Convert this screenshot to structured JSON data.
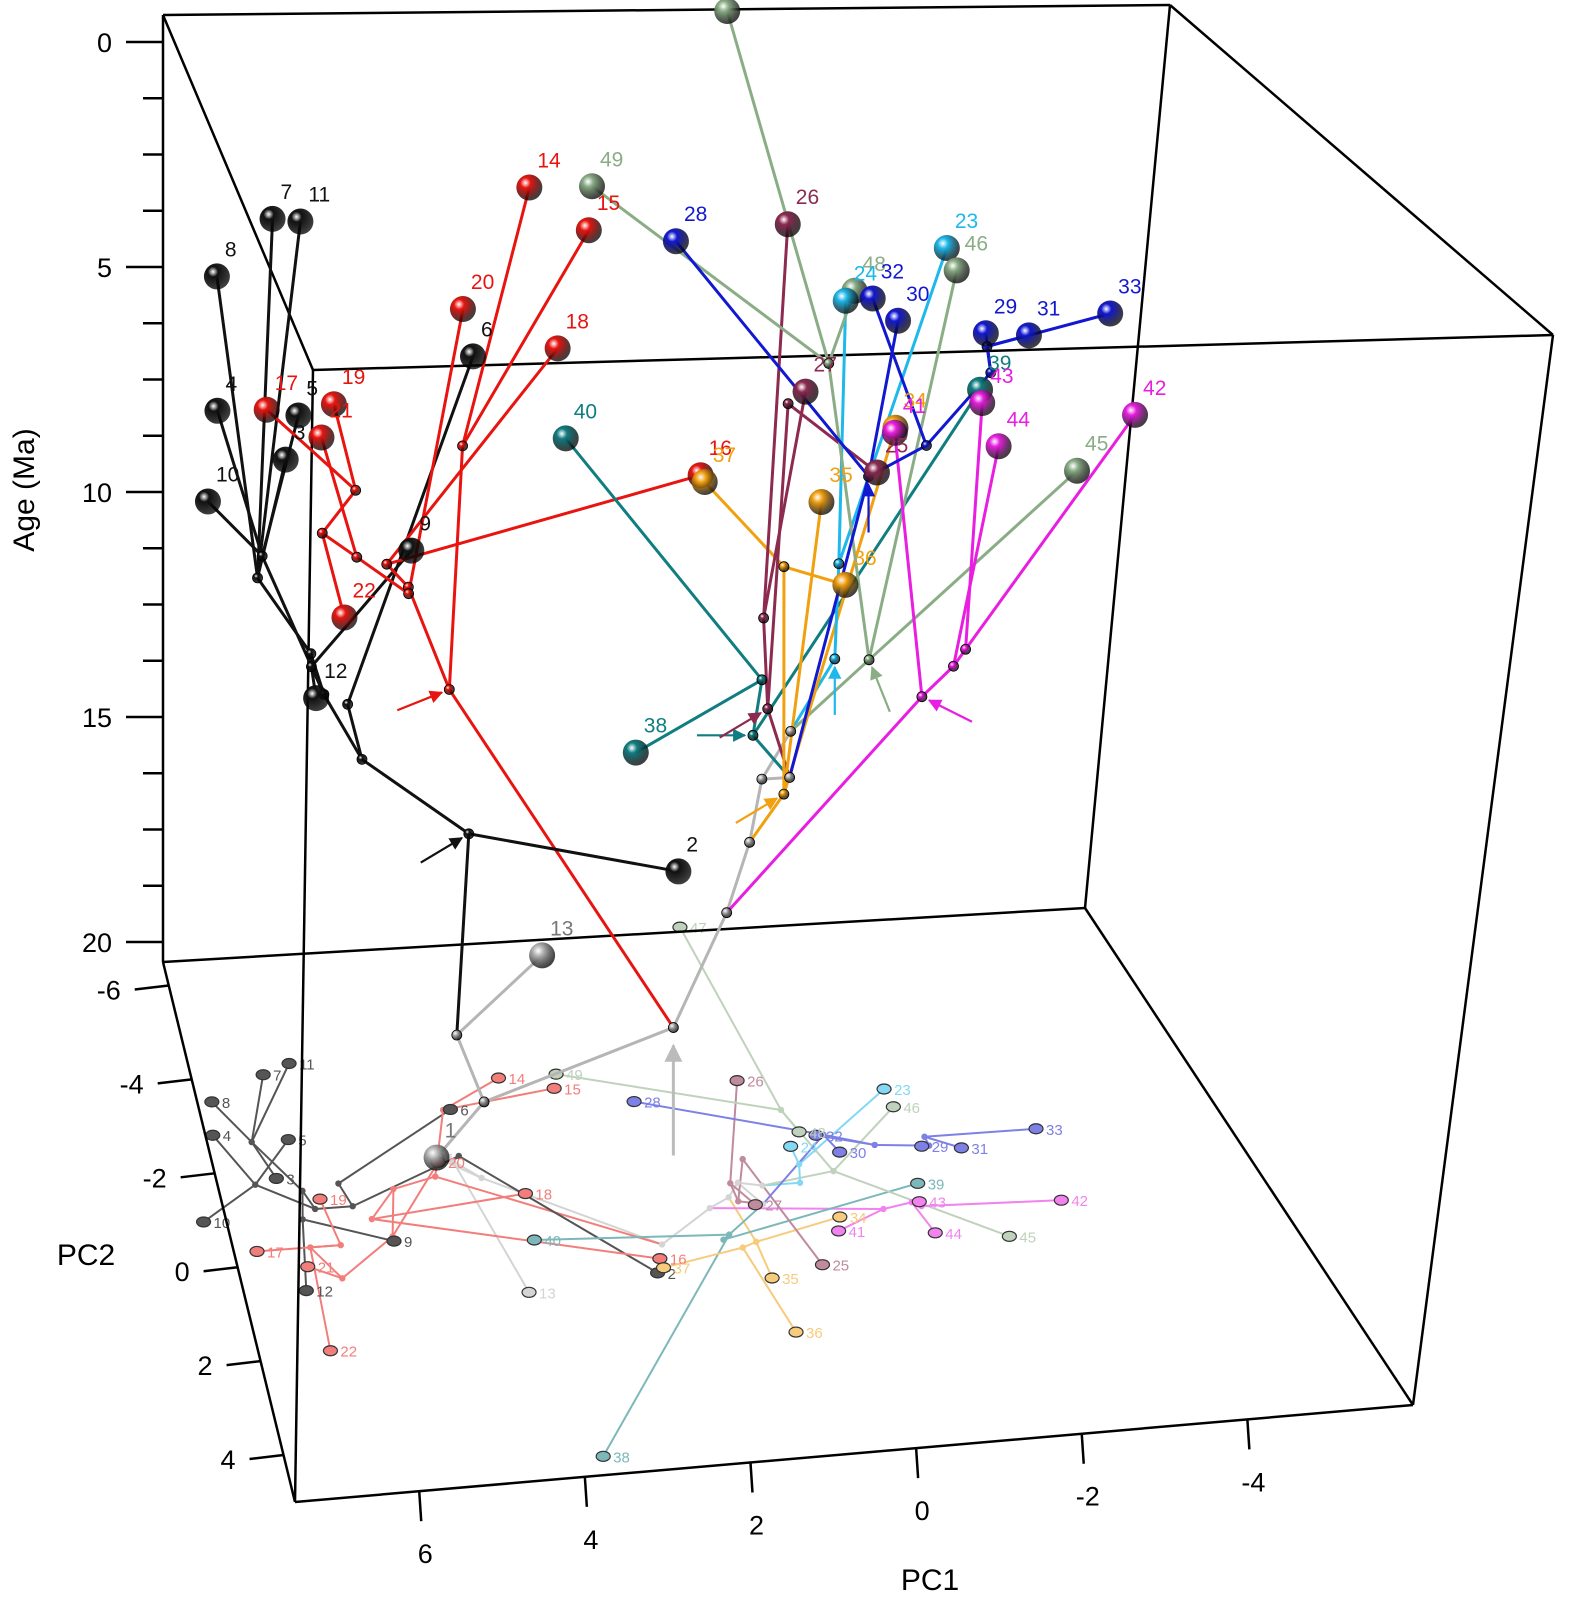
{
  "chart_data": {
    "type": "scatter",
    "subtype": "3d-phylomorphospace",
    "title": "",
    "axes": {
      "x": {
        "label": "PC1",
        "range": [
          7.5,
          -6
        ],
        "ticks": [
          6,
          4,
          2,
          0,
          -2,
          -4
        ],
        "tick_labels": [
          "6",
          "4",
          "2",
          "0",
          "-2",
          "-4"
        ]
      },
      "y": {
        "label": "PC2",
        "range": [
          -6.5,
          5
        ],
        "ticks": [
          -6,
          -4,
          -2,
          0,
          2,
          4
        ],
        "tick_labels": [
          "-6",
          "-4",
          "-2",
          "0",
          "2",
          "4"
        ]
      },
      "z": {
        "label": "Age (Ma)",
        "range": [
          0,
          20
        ],
        "ticks": [
          0,
          5,
          10,
          15,
          20
        ],
        "tick_labels": [
          "0",
          "5",
          "10",
          "15",
          "20"
        ],
        "minor_ticks": [
          1.25,
          2.5,
          3.75,
          6.25,
          7.5,
          8.75,
          11.25,
          12.5,
          13.75,
          16.25,
          17.5,
          18.75
        ]
      }
    },
    "clades": [
      {
        "name": "grey",
        "color": "#b5b5b5"
      },
      {
        "name": "black",
        "color": "#111111"
      },
      {
        "name": "red",
        "color": "#e8140f"
      },
      {
        "name": "teal",
        "color": "#107d80"
      },
      {
        "name": "orange",
        "color": "#f1a010"
      },
      {
        "name": "maroon",
        "color": "#8c2a50"
      },
      {
        "name": "cyan",
        "color": "#1eb8ea"
      },
      {
        "name": "sage",
        "color": "#8aad86"
      },
      {
        "name": "blue",
        "color": "#1218d0"
      },
      {
        "name": "magenta",
        "color": "#e81ee0"
      }
    ],
    "tips": [
      {
        "label": "1",
        "pc1": 4.5,
        "pc2": -2.0,
        "age": 20.0,
        "clade": "grey"
      },
      {
        "label": "2",
        "pc1": 2.2,
        "pc2": 0.8,
        "age": 12.3,
        "clade": "black"
      },
      {
        "label": "3",
        "pc1": 6.7,
        "pc2": -1.8,
        "age": 5.9,
        "clade": "black"
      },
      {
        "label": "4",
        "pc1": 7.4,
        "pc2": -2.8,
        "age": 5.6,
        "clade": "black"
      },
      {
        "label": "5",
        "pc1": 6.4,
        "pc2": -2.6,
        "age": 5.6,
        "clade": "black"
      },
      {
        "label": "6",
        "pc1": 4.1,
        "pc2": -3.0,
        "age": 4.8,
        "clade": "black"
      },
      {
        "label": "7",
        "pc1": 6.5,
        "pc2": -4.0,
        "age": 2.6,
        "clade": "black"
      },
      {
        "label": "8",
        "pc1": 7.3,
        "pc2": -3.5,
        "age": 3.4,
        "clade": "black"
      },
      {
        "label": "9",
        "pc1": 5.4,
        "pc2": -0.3,
        "age": 6.7,
        "clade": "black"
      },
      {
        "label": "10",
        "pc1": 7.8,
        "pc2": -1.0,
        "age": 6.1,
        "clade": "black"
      },
      {
        "label": "11",
        "pc1": 6.1,
        "pc2": -4.2,
        "age": 2.8,
        "clade": "black"
      },
      {
        "label": "12",
        "pc1": 6.7,
        "pc2": 0.6,
        "age": 8.8,
        "clade": "black"
      },
      {
        "label": "13",
        "pc1": 3.9,
        "pc2": 1.0,
        "age": 13.6,
        "clade": "grey"
      },
      {
        "label": "14",
        "pc1": 3.3,
        "pc2": -3.6,
        "age": 1.8,
        "clade": "red"
      },
      {
        "label": "15",
        "pc1": 2.6,
        "pc2": -3.3,
        "age": 2.5,
        "clade": "red"
      },
      {
        "label": "16",
        "pc1": 2.1,
        "pc2": 0.5,
        "age": 4.9,
        "clade": "red"
      },
      {
        "label": "17",
        "pc1": 7.2,
        "pc2": -0.3,
        "age": 3.9,
        "clade": "red"
      },
      {
        "label": "18",
        "pc1": 3.5,
        "pc2": -1.1,
        "age": 3.4,
        "clade": "red"
      },
      {
        "label": "19",
        "pc1": 6.2,
        "pc2": -1.3,
        "age": 4.5,
        "clade": "red"
      },
      {
        "label": "20",
        "pc1": 4.5,
        "pc2": -1.9,
        "age": 3.1,
        "clade": "red"
      },
      {
        "label": "21",
        "pc1": 6.6,
        "pc2": 0.1,
        "age": 4.2,
        "clade": "red"
      },
      {
        "label": "22",
        "pc1": 6.6,
        "pc2": 1.9,
        "age": 6.4,
        "clade": "red"
      },
      {
        "label": "23",
        "pc1": -1.8,
        "pc2": -2.8,
        "age": 2.7,
        "clade": "cyan"
      },
      {
        "label": "24",
        "pc1": -0.2,
        "pc2": -1.7,
        "age": 3.0,
        "clade": "cyan"
      },
      {
        "label": "25",
        "pc1": 0.1,
        "pc2": 0.9,
        "age": 4.7,
        "clade": "maroon"
      },
      {
        "label": "26",
        "pc1": 0.1,
        "pc2": -3.2,
        "age": 2.4,
        "clade": "maroon"
      },
      {
        "label": "27",
        "pc1": 0.6,
        "pc2": -0.5,
        "age": 4.0,
        "clade": "maroon"
      },
      {
        "label": "28",
        "pc1": 1.6,
        "pc2": -2.9,
        "age": 2.5,
        "clade": "blue"
      },
      {
        "label": "29",
        "pc1": -1.9,
        "pc2": -1.5,
        "age": 3.6,
        "clade": "blue"
      },
      {
        "label": "30",
        "pc1": -0.8,
        "pc2": -1.5,
        "age": 3.3,
        "clade": "blue"
      },
      {
        "label": "31",
        "pc1": -2.4,
        "pc2": -1.4,
        "age": 3.6,
        "clade": "blue"
      },
      {
        "label": "32",
        "pc1": -0.6,
        "pc2": -1.9,
        "age": 3.1,
        "clade": "blue"
      },
      {
        "label": "33",
        "pc1": -3.5,
        "pc2": -1.7,
        "age": 3.4,
        "clade": "blue"
      },
      {
        "label": "34",
        "pc1": -0.4,
        "pc2": -0.1,
        "age": 4.5,
        "clade": "orange"
      },
      {
        "label": "35",
        "pc1": 0.8,
        "pc2": 1.1,
        "age": 5.1,
        "clade": "orange"
      },
      {
        "label": "36",
        "pc1": 0.8,
        "pc2": 2.3,
        "age": 5.9,
        "clade": "orange"
      },
      {
        "label": "37",
        "pc1": 2.1,
        "pc2": 0.7,
        "age": 4.9,
        "clade": "orange"
      },
      {
        "label": "38",
        "pc1": 3.7,
        "pc2": 4.6,
        "age": 7.3,
        "clade": "teal"
      },
      {
        "label": "39",
        "pc1": -1.6,
        "pc2": -0.7,
        "age": 4.2,
        "clade": "teal"
      },
      {
        "label": "40",
        "pc1": 3.6,
        "pc2": -0.1,
        "age": 4.5,
        "clade": "teal"
      },
      {
        "label": "41",
        "pc1": -0.3,
        "pc2": 0.2,
        "age": 4.4,
        "clade": "magenta"
      },
      {
        "label": "42",
        "pc1": -3.3,
        "pc2": -0.1,
        "age": 4.4,
        "clade": "magenta"
      },
      {
        "label": "43",
        "pc1": -1.5,
        "pc2": -0.3,
        "age": 4.2,
        "clade": "magenta"
      },
      {
        "label": "44",
        "pc1": -1.5,
        "pc2": 0.4,
        "age": 4.6,
        "clade": "magenta"
      },
      {
        "label": "45",
        "pc1": -2.4,
        "pc2": 0.6,
        "age": 5.0,
        "clade": "sage"
      },
      {
        "label": "46",
        "pc1": -1.8,
        "pc2": -2.4,
        "age": 2.9,
        "clade": "sage"
      },
      {
        "label": "47",
        "pc1": -0.1,
        "pc2": -6.6,
        "age": 0.1,
        "clade": "sage"
      },
      {
        "label": "48",
        "pc1": -0.4,
        "pc2": -2.0,
        "age": 3.0,
        "clade": "sage"
      },
      {
        "label": "49",
        "pc1": 2.5,
        "pc2": -3.6,
        "age": 1.8,
        "clade": "sage"
      }
    ],
    "ancestral_arrows": [
      {
        "clade": "grey",
        "age": 15.8
      },
      {
        "clade": "black",
        "age": 13.6
      },
      {
        "clade": "red",
        "age": 10.4
      },
      {
        "clade": "teal",
        "age": 10.2
      },
      {
        "clade": "maroon",
        "age": 10.5
      },
      {
        "clade": "orange",
        "age": 11.3
      },
      {
        "clade": "cyan",
        "age": 10.4
      },
      {
        "clade": "sage",
        "age": 10.3
      },
      {
        "clade": "magenta",
        "age": 10.1
      },
      {
        "clade": "blue",
        "age": 6.9
      }
    ]
  }
}
